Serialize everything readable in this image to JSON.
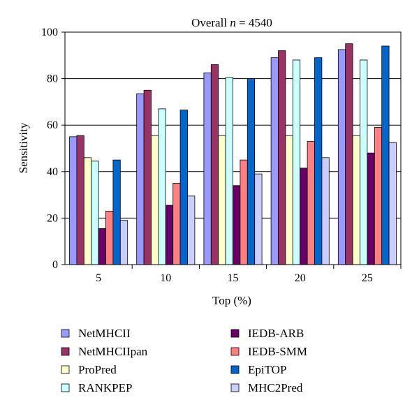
{
  "chart_data": {
    "type": "bar",
    "title_prefix": "Overall ",
    "title_var": "n",
    "title_suffix": " = 4540",
    "xlabel": "Top (%)",
    "ylabel": "Sensitivity",
    "categories": [
      "5",
      "10",
      "15",
      "20",
      "25"
    ],
    "ylim": [
      0,
      100
    ],
    "yticks": [
      0,
      20,
      40,
      60,
      80,
      100
    ],
    "grid": true,
    "legend_position": "bottom",
    "series": [
      {
        "name": "NetMHCII",
        "color": "#9999ff",
        "values": [
          55,
          73.5,
          82.5,
          89,
          92.5
        ]
      },
      {
        "name": "NetMHCIIpan",
        "color": "#993366",
        "values": [
          55.5,
          75,
          86,
          92,
          95
        ]
      },
      {
        "name": "ProPred",
        "color": "#ffffcc",
        "values": [
          46,
          55.5,
          55.5,
          55.5,
          55.5
        ]
      },
      {
        "name": "RANKPEP",
        "color": "#ccffff",
        "values": [
          44.5,
          67,
          80.5,
          88,
          88
        ]
      },
      {
        "name": "IEDB-ARB",
        "color": "#660066",
        "values": [
          15.5,
          25.5,
          34,
          41.5,
          48
        ]
      },
      {
        "name": "IEDB-SMM",
        "color": "#ff8080",
        "values": [
          23,
          35,
          45,
          53,
          59
        ]
      },
      {
        "name": "EpiTOP",
        "color": "#0066cc",
        "values": [
          45,
          66.5,
          80,
          89,
          94
        ]
      },
      {
        "name": "MHC2Pred",
        "color": "#ccccff",
        "values": [
          19,
          29.5,
          39,
          46,
          52.5
        ]
      }
    ]
  }
}
